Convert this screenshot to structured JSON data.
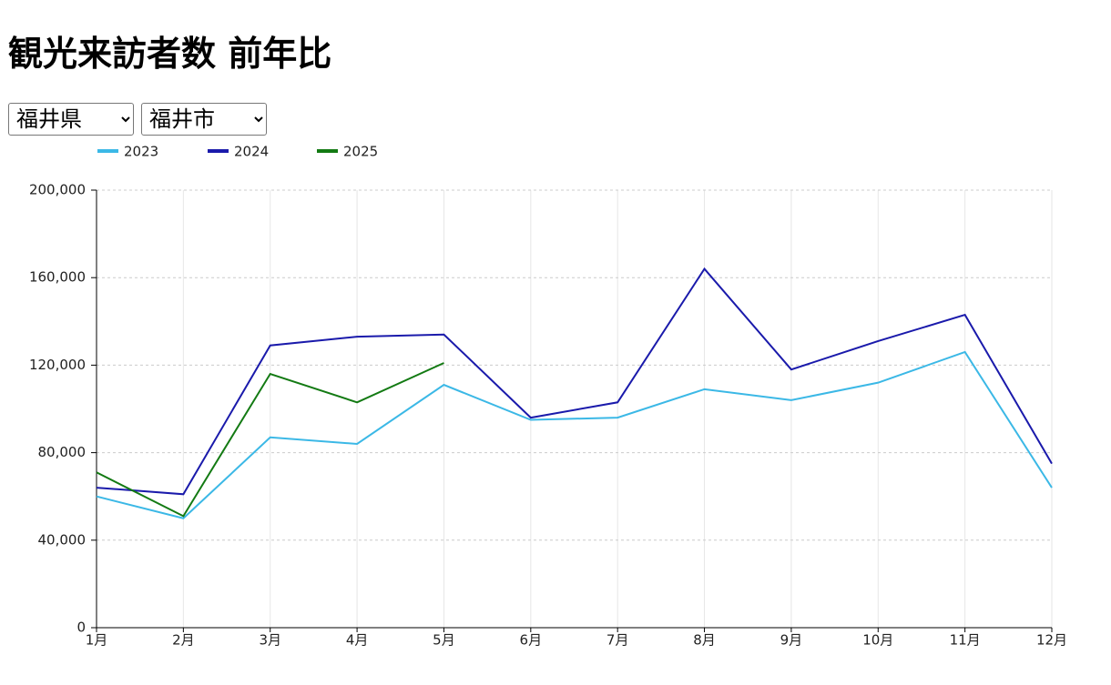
{
  "header": {
    "title": "観光来訪者数 前年比"
  },
  "filters": {
    "prefecture": "福井県",
    "city": "福井市"
  },
  "chart_data": {
    "type": "line",
    "categories": [
      "1月",
      "2月",
      "3月",
      "4月",
      "5月",
      "6月",
      "7月",
      "8月",
      "9月",
      "10月",
      "11月",
      "12月"
    ],
    "series": [
      {
        "name": "2023",
        "color": "#3bb8e6",
        "values": [
          60000,
          50000,
          87000,
          84000,
          111000,
          95000,
          96000,
          109000,
          104000,
          112000,
          126000,
          64000
        ]
      },
      {
        "name": "2024",
        "color": "#1a1aab",
        "values": [
          64000,
          61000,
          129000,
          133000,
          134000,
          96000,
          103000,
          164000,
          118000,
          131000,
          143000,
          75000
        ]
      },
      {
        "name": "2025",
        "color": "#137a13",
        "values": [
          71000,
          51000,
          116000,
          103000,
          121000,
          null,
          null,
          null,
          null,
          null,
          null,
          null
        ]
      }
    ],
    "ylim": [
      0,
      200000
    ],
    "yticks": [
      0,
      {
        "value": 40000,
        "label": "40,000"
      },
      {
        "value": 80000,
        "label": "80,000"
      },
      {
        "value": 120000,
        "label": "120,000"
      },
      {
        "value": 160000,
        "label": "160,000"
      },
      {
        "value": 200000,
        "label": "200,000"
      }
    ],
    "grid": true,
    "legend": "top"
  }
}
